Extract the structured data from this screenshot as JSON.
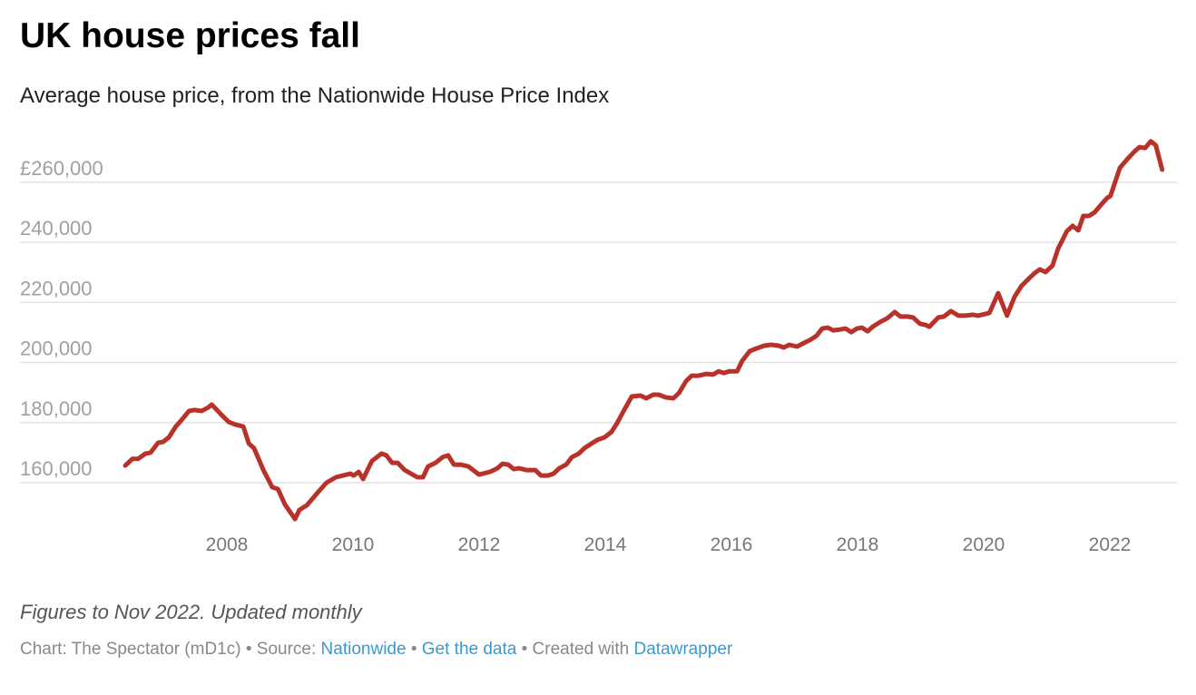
{
  "colors": {
    "line": "#b9322a",
    "grid": "#e3e3e3",
    "tick": "#888888",
    "link": "#3a9ad0"
  },
  "chart_data": {
    "type": "line",
    "title": "UK house prices fall",
    "subtitle": "Average house price, from the Nationwide House Price Index",
    "xlabel": "",
    "ylabel": "",
    "xlim": [
      2006.39,
      2022.83
    ],
    "ylim": [
      145000,
      275000
    ],
    "grid": true,
    "y_ticks": [
      160000,
      180000,
      200000,
      220000,
      240000,
      260000
    ],
    "y_tick_labels": [
      "160,000",
      "180,000",
      "200,000",
      "220,000",
      "240,000",
      "£260,000"
    ],
    "x_ticks": [
      2008,
      2010,
      2012,
      2014,
      2016,
      2018,
      2020,
      2022
    ],
    "x_tick_labels": [
      "2008",
      "2010",
      "2012",
      "2014",
      "2016",
      "2018",
      "2020",
      "2022"
    ],
    "series": [
      {
        "name": "Average house price",
        "x": [
          2006.39,
          2006.5,
          2006.59,
          2006.71,
          2006.79,
          2006.91,
          2006.99,
          2007.08,
          2007.19,
          2007.28,
          2007.4,
          2007.48,
          2007.6,
          2007.71,
          2007.76,
          2007.91,
          2008.03,
          2008.14,
          2008.26,
          2008.35,
          2008.43,
          2008.58,
          2008.72,
          2008.81,
          2008.92,
          2009.08,
          2009.15,
          2009.27,
          2009.44,
          2009.58,
          2009.73,
          2009.84,
          2009.96,
          2010.01,
          2010.09,
          2010.16,
          2010.3,
          2010.45,
          2010.53,
          2010.62,
          2010.71,
          2010.82,
          2011.02,
          2011.11,
          2011.19,
          2011.31,
          2011.42,
          2011.51,
          2011.6,
          2011.71,
          2011.83,
          2012.0,
          2012.17,
          2012.29,
          2012.37,
          2012.46,
          2012.55,
          2012.63,
          2012.75,
          2012.89,
          2012.98,
          2013.09,
          2013.18,
          2013.27,
          2013.38,
          2013.47,
          2013.58,
          2013.67,
          2013.76,
          2013.87,
          2013.99,
          2014.1,
          2014.19,
          2014.3,
          2014.42,
          2014.56,
          2014.65,
          2014.76,
          2014.85,
          2014.96,
          2015.08,
          2015.17,
          2015.28,
          2015.37,
          2015.48,
          2015.6,
          2015.71,
          2015.8,
          2015.88,
          2015.97,
          2016.09,
          2016.17,
          2016.29,
          2016.4,
          2016.52,
          2016.63,
          2016.75,
          2016.83,
          2016.92,
          2017.04,
          2017.15,
          2017.24,
          2017.35,
          2017.44,
          2017.53,
          2017.61,
          2017.73,
          2017.81,
          2017.9,
          2017.99,
          2018.07,
          2018.16,
          2018.24,
          2018.36,
          2018.47,
          2018.59,
          2018.68,
          2018.79,
          2018.88,
          2018.99,
          2019.08,
          2019.14,
          2019.28,
          2019.37,
          2019.48,
          2019.6,
          2019.71,
          2019.83,
          2019.91,
          2020.03,
          2020.09,
          2020.23,
          2020.37,
          2020.49,
          2020.6,
          2020.72,
          2020.81,
          2020.89,
          2020.98,
          2021.09,
          2021.18,
          2021.32,
          2021.41,
          2021.5,
          2021.58,
          2021.67,
          2021.76,
          2021.87,
          2021.96,
          2022.01,
          2022.16,
          2022.27,
          2022.39,
          2022.47,
          2022.56,
          2022.65,
          2022.73,
          2022.83
        ],
        "values": [
          165700,
          167900,
          167900,
          169700,
          170000,
          173300,
          173600,
          175100,
          178700,
          180800,
          183900,
          184200,
          183900,
          185100,
          186000,
          182700,
          180200,
          179300,
          178700,
          173000,
          171500,
          164200,
          158500,
          157900,
          152800,
          147900,
          150900,
          152500,
          156700,
          160000,
          161800,
          162400,
          163000,
          162400,
          163600,
          161200,
          167200,
          169700,
          169100,
          166600,
          166600,
          164200,
          161800,
          161800,
          165400,
          166600,
          168500,
          169100,
          166000,
          166000,
          165400,
          162700,
          163600,
          164800,
          166300,
          166000,
          164500,
          164800,
          164200,
          164200,
          162400,
          162400,
          163000,
          164800,
          166000,
          168500,
          169700,
          171500,
          172700,
          174200,
          175100,
          176900,
          179900,
          184200,
          188700,
          189000,
          188100,
          189300,
          189300,
          188400,
          188100,
          189900,
          193800,
          195600,
          195600,
          196200,
          196000,
          197100,
          196500,
          197100,
          197100,
          200500,
          203800,
          204700,
          205600,
          205900,
          205600,
          205000,
          205900,
          205300,
          206500,
          207400,
          208900,
          211300,
          211600,
          210700,
          211000,
          211300,
          210100,
          211300,
          211600,
          210400,
          211900,
          213500,
          214700,
          216800,
          215300,
          215300,
          215000,
          212900,
          212500,
          211900,
          215000,
          215300,
          217100,
          215600,
          215600,
          215900,
          215600,
          216200,
          216500,
          223100,
          215600,
          221900,
          225500,
          228000,
          229800,
          231000,
          230100,
          232200,
          237900,
          243700,
          245500,
          244000,
          248800,
          248800,
          250000,
          252700,
          254800,
          255400,
          264800,
          267500,
          270200,
          271700,
          271400,
          273600,
          272300,
          264200
        ]
      }
    ]
  },
  "notes": "Figures to Nov 2022. Updated monthly",
  "footer": {
    "credit": "Chart: The Spectator (mD1c) • Source: ",
    "source_link": "Nationwide",
    "sep1": " • ",
    "data_link": "Get the data",
    "sep2": " • Created with ",
    "tool_link": "Datawrapper"
  }
}
